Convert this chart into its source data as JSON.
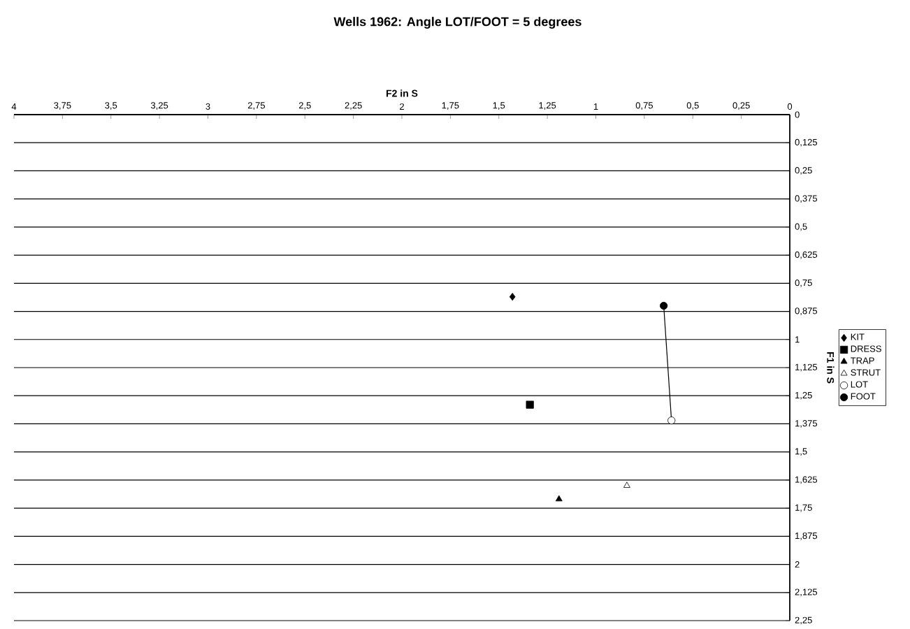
{
  "chart_data": {
    "type": "scatter",
    "title": "Wells 1962: Angle LOT/FOOT = 5 degrees",
    "xlabel": "F2 in S",
    "ylabel": "F1 in S",
    "xlim": [
      4,
      0
    ],
    "ylim": [
      2.25,
      0
    ],
    "xticks": [
      4,
      {
        "value": 3.75,
        "label": "3,75"
      },
      {
        "value": 3.5,
        "label": "3,5"
      },
      {
        "value": 3.25,
        "label": "3,25"
      },
      3,
      {
        "value": 2.75,
        "label": "2,75"
      },
      {
        "value": 2.5,
        "label": "2,5"
      },
      {
        "value": 2.25,
        "label": "2,25"
      },
      2,
      {
        "value": 1.75,
        "label": "1,75"
      },
      {
        "value": 1.5,
        "label": "1,5"
      },
      {
        "value": 1.25,
        "label": "1,25"
      },
      1,
      {
        "value": 0.75,
        "label": "0,75"
      },
      {
        "value": 0.5,
        "label": "0,5"
      },
      {
        "value": 0.25,
        "label": "0,25"
      },
      0
    ],
    "yticks": [
      0,
      {
        "value": 0.125,
        "label": "0,125"
      },
      {
        "value": 0.25,
        "label": "0,25"
      },
      {
        "value": 0.375,
        "label": "0,375"
      },
      {
        "value": 0.5,
        "label": "0,5"
      },
      {
        "value": 0.625,
        "label": "0,625"
      },
      {
        "value": 0.75,
        "label": "0,75"
      },
      {
        "value": 0.875,
        "label": "0,875"
      },
      1,
      {
        "value": 1.125,
        "label": "1,125"
      },
      {
        "value": 1.25,
        "label": "1,25"
      },
      {
        "value": 1.375,
        "label": "1,375"
      },
      {
        "value": 1.5,
        "label": "1,5"
      },
      {
        "value": 1.625,
        "label": "1,625"
      },
      {
        "value": 1.75,
        "label": "1,75"
      },
      {
        "value": 1.875,
        "label": "1,875"
      },
      2,
      {
        "value": 2.125,
        "label": "2,125"
      },
      {
        "value": 2.25,
        "label": "2,25"
      }
    ],
    "grid": "y",
    "legend": "right",
    "series": [
      {
        "name": "KIT",
        "color": "#000000",
        "marker": "diamond",
        "x": [
          1.43
        ],
        "values": [
          0.81
        ]
      },
      {
        "name": "DRESS",
        "color": "#000000",
        "marker": "square",
        "x": [
          1.34
        ],
        "values": [
          1.29
        ]
      },
      {
        "name": "TRAP",
        "color": "#000000",
        "marker": "triangle",
        "x": [
          1.19
        ],
        "values": [
          1.71
        ]
      },
      {
        "name": "STRUT",
        "color": "#ffffff",
        "marker": "triangle",
        "x": [
          0.84
        ],
        "values": [
          1.65
        ]
      },
      {
        "name": "LOT",
        "color": "#ffffff",
        "marker": "circle",
        "x": [
          0.61
        ],
        "values": [
          1.36
        ]
      },
      {
        "name": "FOOT",
        "color": "#000000",
        "marker": "circle",
        "x": [
          0.65
        ],
        "values": [
          0.85
        ]
      },
      {
        "type": "line",
        "color": "#000000",
        "marker": "none",
        "line_style": "solid",
        "x": [
          0.65,
          0.61
        ],
        "values": [
          0.85,
          1.36
        ]
      }
    ]
  }
}
